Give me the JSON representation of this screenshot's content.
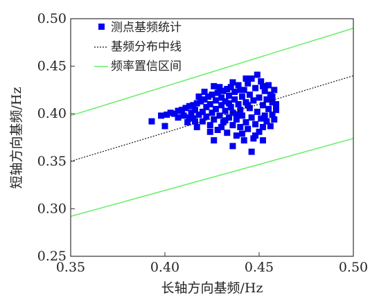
{
  "chart_data": {
    "type": "scatter",
    "xlabel": "长轴方向基频/Hz",
    "ylabel": "短轴方向基频/Hz",
    "xlim": [
      0.35,
      0.5
    ],
    "ylim": [
      0.25,
      0.5
    ],
    "xticks": [
      "0.35",
      "0.40",
      "0.45",
      "0.50"
    ],
    "yticks": [
      "0.25",
      "0.30",
      "0.35",
      "0.40",
      "0.45",
      "0.50"
    ],
    "grid": false,
    "legend_position": "top-left",
    "series": [
      {
        "name": "测点基频统计",
        "kind": "scatter",
        "marker": "square",
        "color": "#0000ee",
        "points": [
          [
            0.393,
            0.392
          ],
          [
            0.398,
            0.398
          ],
          [
            0.4,
            0.387
          ],
          [
            0.401,
            0.399
          ],
          [
            0.403,
            0.401
          ],
          [
            0.405,
            0.4
          ],
          [
            0.407,
            0.403
          ],
          [
            0.409,
            0.404
          ],
          [
            0.41,
            0.398
          ],
          [
            0.411,
            0.406
          ],
          [
            0.412,
            0.391
          ],
          [
            0.413,
            0.408
          ],
          [
            0.414,
            0.401
          ],
          [
            0.415,
            0.395
          ],
          [
            0.415,
            0.409
          ],
          [
            0.416,
            0.404
          ],
          [
            0.417,
            0.386
          ],
          [
            0.417,
            0.411
          ],
          [
            0.418,
            0.399
          ],
          [
            0.419,
            0.413
          ],
          [
            0.42,
            0.402
          ],
          [
            0.42,
            0.392
          ],
          [
            0.421,
            0.415
          ],
          [
            0.422,
            0.407
          ],
          [
            0.422,
            0.397
          ],
          [
            0.423,
            0.418
          ],
          [
            0.424,
            0.388
          ],
          [
            0.424,
            0.41
          ],
          [
            0.425,
            0.401
          ],
          [
            0.425,
            0.42
          ],
          [
            0.426,
            0.394
          ],
          [
            0.427,
            0.414
          ],
          [
            0.427,
            0.405
          ],
          [
            0.428,
            0.422
          ],
          [
            0.428,
            0.383
          ],
          [
            0.429,
            0.398
          ],
          [
            0.43,
            0.417
          ],
          [
            0.43,
            0.409
          ],
          [
            0.431,
            0.424
          ],
          [
            0.431,
            0.391
          ],
          [
            0.432,
            0.403
          ],
          [
            0.432,
            0.413
          ],
          [
            0.433,
            0.426
          ],
          [
            0.433,
            0.38
          ],
          [
            0.434,
            0.396
          ],
          [
            0.434,
            0.419
          ],
          [
            0.435,
            0.407
          ],
          [
            0.435,
            0.428
          ],
          [
            0.436,
            0.388
          ],
          [
            0.436,
            0.401
          ],
          [
            0.437,
            0.415
          ],
          [
            0.437,
            0.423
          ],
          [
            0.438,
            0.377
          ],
          [
            0.438,
            0.394
          ],
          [
            0.439,
            0.41
          ],
          [
            0.439,
            0.43
          ],
          [
            0.44,
            0.386
          ],
          [
            0.44,
            0.404
          ],
          [
            0.441,
            0.418
          ],
          [
            0.441,
            0.398
          ],
          [
            0.442,
            0.425
          ],
          [
            0.442,
            0.372
          ],
          [
            0.443,
            0.391
          ],
          [
            0.443,
            0.412
          ],
          [
            0.444,
            0.432
          ],
          [
            0.444,
            0.384
          ],
          [
            0.445,
            0.406
          ],
          [
            0.445,
            0.42
          ],
          [
            0.446,
            0.396
          ],
          [
            0.446,
            0.437
          ],
          [
            0.447,
            0.374
          ],
          [
            0.447,
            0.414
          ],
          [
            0.448,
            0.389
          ],
          [
            0.448,
            0.427
          ],
          [
            0.449,
            0.402
          ],
          [
            0.449,
            0.441
          ],
          [
            0.45,
            0.381
          ],
          [
            0.45,
            0.417
          ],
          [
            0.451,
            0.395
          ],
          [
            0.451,
            0.434
          ],
          [
            0.452,
            0.409
          ],
          [
            0.452,
            0.386
          ],
          [
            0.453,
            0.424
          ],
          [
            0.453,
            0.398
          ],
          [
            0.454,
            0.415
          ],
          [
            0.454,
            0.392
          ],
          [
            0.455,
            0.43
          ],
          [
            0.455,
            0.405
          ],
          [
            0.456,
            0.387
          ],
          [
            0.456,
            0.42
          ],
          [
            0.457,
            0.399
          ],
          [
            0.457,
            0.412
          ],
          [
            0.458,
            0.394
          ],
          [
            0.458,
            0.425
          ],
          [
            0.459,
            0.404
          ],
          [
            0.459,
            0.41
          ],
          [
            0.446,
            0.36
          ],
          [
            0.436,
            0.366
          ],
          [
            0.426,
            0.372
          ],
          [
            0.441,
            0.379
          ],
          [
            0.421,
            0.423
          ],
          [
            0.429,
            0.428
          ],
          [
            0.436,
            0.433
          ],
          [
            0.443,
            0.437
          ],
          [
            0.432,
            0.393
          ],
          [
            0.438,
            0.399
          ],
          [
            0.444,
            0.409
          ],
          [
            0.424,
            0.381
          ],
          [
            0.416,
            0.392
          ],
          [
            0.452,
            0.372
          ],
          [
            0.448,
            0.377
          ],
          [
            0.413,
            0.396
          ],
          [
            0.407,
            0.396
          ],
          [
            0.426,
            0.429
          ],
          [
            0.434,
            0.411
          ],
          [
            0.418,
            0.418
          ],
          [
            0.44,
            0.425
          ],
          [
            0.452,
            0.429
          ],
          [
            0.457,
            0.418
          ],
          [
            0.43,
            0.386
          ]
        ]
      },
      {
        "name": "基频分布中线",
        "kind": "line",
        "style": "dashed",
        "color": "#111111",
        "points": [
          [
            0.35,
            0.35
          ],
          [
            0.5,
            0.44
          ]
        ]
      },
      {
        "name": "频率置信区间",
        "kind": "line",
        "style": "solid",
        "color": "#66ee66",
        "bands": [
          [
            [
              0.35,
              0.398
            ],
            [
              0.5,
              0.49
            ]
          ],
          [
            [
              0.35,
              0.292
            ],
            [
              0.5,
              0.374
            ]
          ]
        ]
      }
    ]
  }
}
